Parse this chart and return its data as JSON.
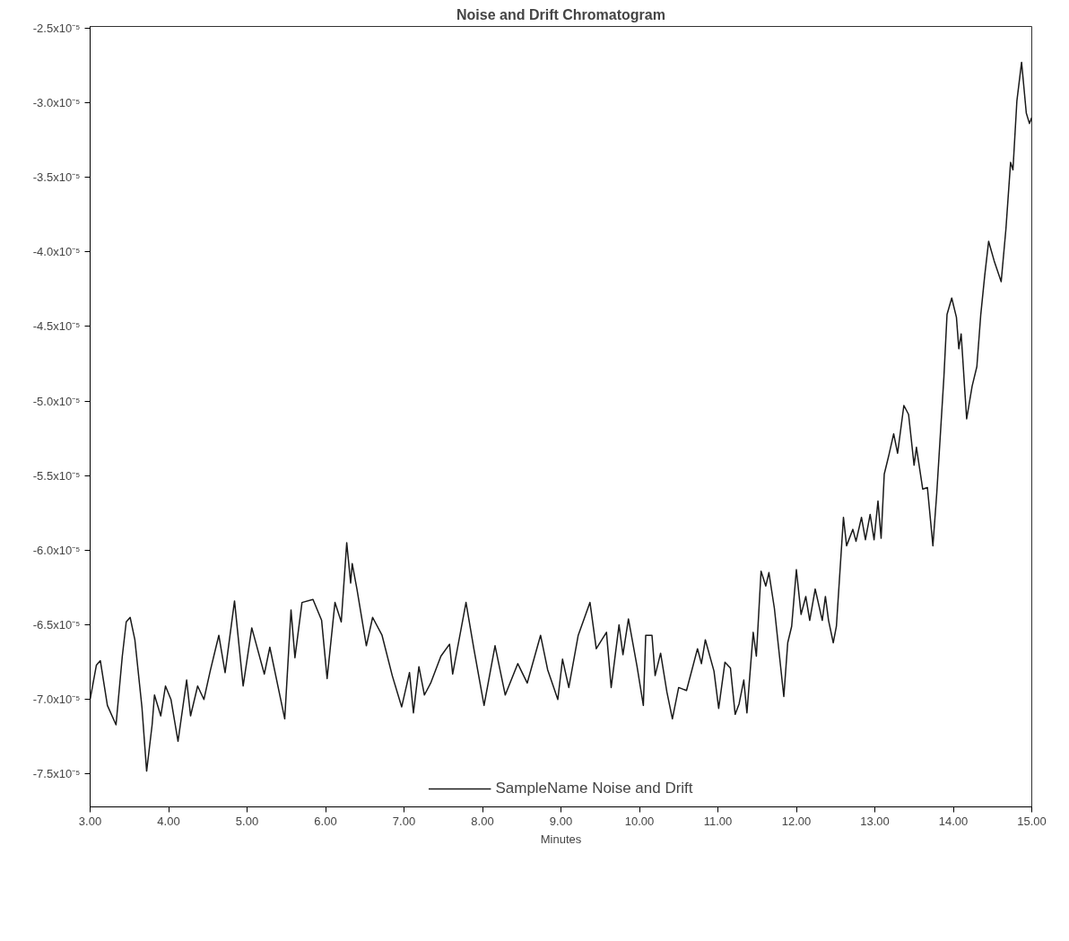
{
  "chart_data": {
    "type": "line",
    "title": "Noise and Drift Chromatogram",
    "xlabel": "Minutes",
    "xlim": [
      3.0,
      15.0
    ],
    "xticks": [
      {
        "value": 3,
        "label": "3.00"
      },
      {
        "value": 4,
        "label": "4.00"
      },
      {
        "value": 5,
        "label": "5.00"
      },
      {
        "value": 6,
        "label": "6.00"
      },
      {
        "value": 7,
        "label": "7.00"
      },
      {
        "value": 8,
        "label": "8.00"
      },
      {
        "value": 9,
        "label": "9.00"
      },
      {
        "value": 10,
        "label": "10.00"
      },
      {
        "value": 11,
        "label": "11.00"
      },
      {
        "value": 12,
        "label": "12.00"
      },
      {
        "value": 13,
        "label": "13.00"
      },
      {
        "value": 14,
        "label": "14.00"
      },
      {
        "value": 15,
        "label": "15.00"
      }
    ],
    "ylim": [
      -7.72e-05,
      -2.49e-05
    ],
    "yticks": [
      {
        "value": -2.5e-05,
        "label": "-2.5x10⁻⁵"
      },
      {
        "value": -3e-05,
        "label": "-3.0x10⁻⁵"
      },
      {
        "value": -3.5e-05,
        "label": "-3.5x10⁻⁵"
      },
      {
        "value": -4e-05,
        "label": "-4.0x10⁻⁵"
      },
      {
        "value": -4.5e-05,
        "label": "-4.5x10⁻⁵"
      },
      {
        "value": -5e-05,
        "label": "-5.0x10⁻⁵"
      },
      {
        "value": -5.5e-05,
        "label": "-5.5x10⁻⁵"
      },
      {
        "value": -6e-05,
        "label": "-6.0x10⁻⁵"
      },
      {
        "value": -6.5e-05,
        "label": "-6.5x10⁻⁵"
      },
      {
        "value": -7e-05,
        "label": "-7.0x10⁻⁵"
      },
      {
        "value": -7.5e-05,
        "label": "-7.5x10⁻⁵"
      }
    ],
    "grid": false,
    "legend": "bottom",
    "marker": "none",
    "line_style": "solid",
    "series": [
      {
        "name": "SampleName Noise and Drift",
        "color": "#1a1a1a",
        "x": [
          3.0,
          3.08,
          3.13,
          3.22,
          3.33,
          3.41,
          3.46,
          3.51,
          3.57,
          3.66,
          3.72,
          3.79,
          3.82,
          3.9,
          3.96,
          4.03,
          4.12,
          4.23,
          4.28,
          4.37,
          4.45,
          4.53,
          4.64,
          4.72,
          4.84,
          4.95,
          5.06,
          5.22,
          5.29,
          5.48,
          5.56,
          5.61,
          5.7,
          5.84,
          5.95,
          6.02,
          6.12,
          6.2,
          6.27,
          6.32,
          6.34,
          6.4,
          6.52,
          6.6,
          6.72,
          6.85,
          6.97,
          7.07,
          7.12,
          7.19,
          7.26,
          7.34,
          7.47,
          7.58,
          7.62,
          7.79,
          7.89,
          8.02,
          8.16,
          8.29,
          8.45,
          8.57,
          8.74,
          8.83,
          8.96,
          9.02,
          9.1,
          9.22,
          9.37,
          9.45,
          9.58,
          9.64,
          9.74,
          9.79,
          9.86,
          9.97,
          10.05,
          10.08,
          10.16,
          10.2,
          10.27,
          10.35,
          10.42,
          10.5,
          10.6,
          10.67,
          10.74,
          10.79,
          10.84,
          10.95,
          11.01,
          11.09,
          11.16,
          11.22,
          11.27,
          11.33,
          11.37,
          11.45,
          11.49,
          11.55,
          11.61,
          11.65,
          11.72,
          11.84,
          11.89,
          11.94,
          12.0,
          12.06,
          12.12,
          12.17,
          12.24,
          12.33,
          12.37,
          12.41,
          12.47,
          12.51,
          12.6,
          12.64,
          12.72,
          12.76,
          12.83,
          12.88,
          12.94,
          12.99,
          13.04,
          13.08,
          13.12,
          13.18,
          13.24,
          13.29,
          13.37,
          13.43,
          13.5,
          13.53,
          13.61,
          13.67,
          13.74,
          13.79,
          13.88,
          13.92,
          13.98,
          14.04,
          14.07,
          14.1,
          14.17,
          14.24,
          14.3,
          14.35,
          14.4,
          14.45,
          14.52,
          14.61,
          14.67,
          14.73,
          14.76,
          14.81,
          14.87,
          14.93,
          14.97,
          15.0
        ],
        "values": [
          -7e-05,
          -6.77e-05,
          -6.74e-05,
          -7.04e-05,
          -7.17e-05,
          -6.71e-05,
          -6.48e-05,
          -6.45e-05,
          -6.6e-05,
          -7.05e-05,
          -7.48e-05,
          -7.17e-05,
          -6.97e-05,
          -7.11e-05,
          -6.91e-05,
          -7e-05,
          -7.28e-05,
          -6.87e-05,
          -7.11e-05,
          -6.91e-05,
          -7e-05,
          -6.81e-05,
          -6.57e-05,
          -6.82e-05,
          -6.34e-05,
          -6.91e-05,
          -6.52e-05,
          -6.83e-05,
          -6.65e-05,
          -7.13e-05,
          -6.4e-05,
          -6.72e-05,
          -6.35e-05,
          -6.33e-05,
          -6.47e-05,
          -6.86e-05,
          -6.35e-05,
          -6.48e-05,
          -5.95e-05,
          -6.22e-05,
          -6.09e-05,
          -6.26e-05,
          -6.64e-05,
          -6.45e-05,
          -6.57e-05,
          -6.84e-05,
          -7.05e-05,
          -6.82e-05,
          -7.09e-05,
          -6.78e-05,
          -6.97e-05,
          -6.89e-05,
          -6.71e-05,
          -6.63e-05,
          -6.83e-05,
          -6.35e-05,
          -6.66e-05,
          -7.04e-05,
          -6.64e-05,
          -6.97e-05,
          -6.76e-05,
          -6.89e-05,
          -6.57e-05,
          -6.8e-05,
          -7e-05,
          -6.73e-05,
          -6.92e-05,
          -6.57e-05,
          -6.35e-05,
          -6.66e-05,
          -6.55e-05,
          -6.92e-05,
          -6.5e-05,
          -6.7e-05,
          -6.46e-05,
          -6.78e-05,
          -7.04e-05,
          -6.57e-05,
          -6.57e-05,
          -6.84e-05,
          -6.69e-05,
          -6.95e-05,
          -7.13e-05,
          -6.92e-05,
          -6.94e-05,
          -6.8e-05,
          -6.66e-05,
          -6.76e-05,
          -6.6e-05,
          -6.81e-05,
          -7.06e-05,
          -6.75e-05,
          -6.79e-05,
          -7.1e-05,
          -7.03e-05,
          -6.87e-05,
          -7.09e-05,
          -6.55e-05,
          -6.71e-05,
          -6.14e-05,
          -6.24e-05,
          -6.15e-05,
          -6.39e-05,
          -6.98e-05,
          -6.62e-05,
          -6.51e-05,
          -6.13e-05,
          -6.43e-05,
          -6.31e-05,
          -6.47e-05,
          -6.26e-05,
          -6.47e-05,
          -6.31e-05,
          -6.47e-05,
          -6.62e-05,
          -6.51e-05,
          -5.78e-05,
          -5.97e-05,
          -5.86e-05,
          -5.94e-05,
          -5.78e-05,
          -5.93e-05,
          -5.76e-05,
          -5.93e-05,
          -5.67e-05,
          -5.92e-05,
          -5.49e-05,
          -5.36e-05,
          -5.22e-05,
          -5.35e-05,
          -5.03e-05,
          -5.09e-05,
          -5.43e-05,
          -5.31e-05,
          -5.59e-05,
          -5.58e-05,
          -5.97e-05,
          -5.61e-05,
          -4.84e-05,
          -4.42e-05,
          -4.31e-05,
          -4.44e-05,
          -4.65e-05,
          -4.55e-05,
          -5.12e-05,
          -4.9e-05,
          -4.77e-05,
          -4.42e-05,
          -4.16e-05,
          -3.93e-05,
          -4.06e-05,
          -4.2e-05,
          -3.85e-05,
          -3.4e-05,
          -3.45e-05,
          -2.99e-05,
          -2.73e-05,
          -3.07e-05,
          -3.14e-05,
          -3.1e-05
        ]
      }
    ]
  }
}
